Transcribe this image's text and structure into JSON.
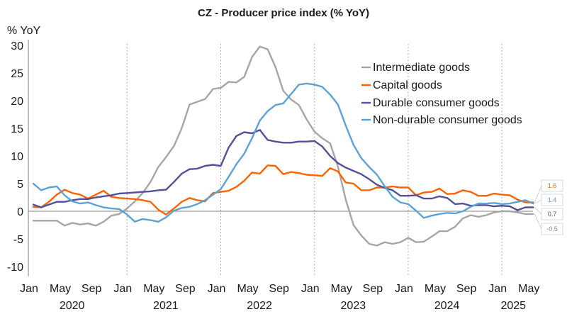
{
  "chart_data": {
    "type": "line",
    "title": "CZ - Producer price index (% YoY)",
    "ylabel": "% YoY",
    "ylim": [
      -12,
      32
    ],
    "yticks": [
      30,
      25,
      20,
      15,
      10,
      5,
      0,
      -5,
      -10
    ],
    "x_start": "2020-01",
    "x_end": "2025-05",
    "month_ticks": [
      "Jan",
      "May",
      "Sep",
      "Jan",
      "May",
      "Sep",
      "Jan",
      "May",
      "Sep",
      "Jan",
      "May",
      "Sep",
      "Jan",
      "May",
      "Sep",
      "Jan",
      "May"
    ],
    "year_labels": [
      "2020",
      "2021",
      "2022",
      "2023",
      "2024",
      "2025"
    ],
    "legend_position": "top-right",
    "grid": "dotted vertical lines at each January",
    "series": [
      {
        "name": "Intermediate goods",
        "color": "#a6a6a6",
        "end_label": "-0.5",
        "values": [
          -1.7,
          -1.7,
          -1.7,
          -1.7,
          -2.6,
          -2.1,
          -2.4,
          -2.2,
          -2.6,
          -1.9,
          -0.8,
          -0.5,
          0.5,
          1.8,
          3.3,
          5.3,
          8.0,
          9.8,
          11.8,
          15.0,
          19.3,
          19.8,
          20.3,
          22.1,
          22.3,
          23.4,
          23.3,
          24.3,
          27.9,
          29.8,
          29.3,
          26.1,
          21.8,
          20.2,
          19.2,
          16.6,
          14.4,
          13.2,
          12.3,
          8.1,
          2.1,
          -2.5,
          -4.4,
          -5.9,
          -6.2,
          -5.6,
          -5.9,
          -5.6,
          -4.8,
          -5.6,
          -5.5,
          -4.6,
          -3.6,
          -3.6,
          -2.8,
          -1.3,
          -0.7,
          -1.0,
          -0.7,
          -0.2,
          0.0,
          0.0,
          -0.2,
          -0.5,
          -0.5
        ]
      },
      {
        "name": "Capital goods",
        "color": "#ff6200",
        "end_label": "1.6",
        "values": [
          0.8,
          0.7,
          1.7,
          3.0,
          3.9,
          3.3,
          3.0,
          2.3,
          3.0,
          3.7,
          2.6,
          2.4,
          2.3,
          2.2,
          2.0,
          1.7,
          0.3,
          -0.6,
          0.5,
          1.7,
          2.4,
          2.0,
          1.8,
          3.3,
          3.5,
          3.7,
          4.4,
          5.5,
          7.0,
          6.8,
          8.3,
          8.2,
          6.7,
          7.1,
          6.9,
          6.6,
          6.5,
          6.4,
          7.8,
          7.2,
          5.2,
          5.0,
          3.8,
          3.8,
          4.3,
          4.3,
          4.5,
          4.3,
          4.3,
          2.9,
          3.4,
          3.5,
          4.1,
          3.1,
          3.2,
          3.8,
          3.5,
          2.8,
          2.8,
          3.2,
          3.0,
          2.9,
          2.1,
          1.6,
          1.6
        ]
      },
      {
        "name": "Durable consumer goods",
        "color": "#525199",
        "end_label": "0.7",
        "values": [
          1.2,
          0.7,
          1.2,
          1.7,
          1.7,
          2.0,
          2.2,
          2.2,
          2.5,
          2.7,
          2.9,
          3.2,
          3.3,
          3.4,
          3.5,
          3.6,
          3.8,
          3.9,
          5.3,
          6.8,
          7.6,
          7.7,
          8.2,
          8.4,
          8.2,
          11.5,
          13.6,
          14.3,
          14.1,
          14.7,
          12.9,
          12.6,
          12.4,
          12.4,
          12.6,
          12.6,
          12.7,
          11.7,
          10.0,
          8.7,
          7.9,
          7.3,
          6.7,
          5.8,
          4.8,
          4.2,
          3.8,
          2.8,
          2.8,
          2.9,
          2.3,
          2.3,
          2.7,
          2.4,
          1.3,
          1.4,
          1.0,
          1.1,
          1.1,
          0.9,
          1.0,
          0.9,
          0.2,
          0.7,
          0.7
        ]
      },
      {
        "name": "Non-durable consumer goods",
        "color": "#5aa3d8",
        "end_label": "1.4",
        "values": [
          5.0,
          3.8,
          4.3,
          4.5,
          2.9,
          1.8,
          1.4,
          1.6,
          1.1,
          0.7,
          0.5,
          0.4,
          -0.6,
          -1.9,
          -1.4,
          -1.6,
          -1.9,
          -1.1,
          0.1,
          0.6,
          0.8,
          1.3,
          2.0,
          3.0,
          4.0,
          6.2,
          8.5,
          10.4,
          13.2,
          16.4,
          18.1,
          19.2,
          19.5,
          21.2,
          22.9,
          23.1,
          22.9,
          22.5,
          21.1,
          19.3,
          15.5,
          12.0,
          9.6,
          8.0,
          6.6,
          4.5,
          2.6,
          1.6,
          1.3,
          0.1,
          -1.2,
          -0.8,
          -0.5,
          -0.3,
          -0.4,
          0.0,
          0.8,
          1.4,
          1.4,
          1.5,
          1.3,
          1.4,
          1.7,
          2.0,
          1.4
        ]
      }
    ]
  }
}
